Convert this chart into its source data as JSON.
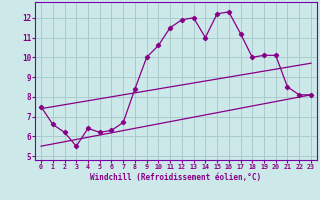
{
  "xlabel": "Windchill (Refroidissement éolien,°C)",
  "bg_color": "#cce8e8",
  "grid_color": "#aacccc",
  "line_color": "#880088",
  "spine_color": "#7700aa",
  "xlim": [
    -0.5,
    23.5
  ],
  "ylim": [
    4.8,
    12.8
  ],
  "yticks": [
    5,
    6,
    7,
    8,
    9,
    10,
    11,
    12
  ],
  "xticks": [
    0,
    1,
    2,
    3,
    4,
    5,
    6,
    7,
    8,
    9,
    10,
    11,
    12,
    13,
    14,
    15,
    16,
    17,
    18,
    19,
    20,
    21,
    22,
    23
  ],
  "series1_x": [
    0,
    1,
    2,
    3,
    4,
    5,
    6,
    7,
    8,
    9,
    10,
    11,
    12,
    13,
    14,
    15,
    16,
    17,
    18,
    19,
    20,
    21,
    22,
    23
  ],
  "series1_y": [
    7.5,
    6.6,
    6.2,
    5.5,
    6.4,
    6.2,
    6.3,
    6.7,
    8.4,
    10.0,
    10.6,
    11.5,
    11.9,
    12.0,
    11.0,
    12.2,
    12.3,
    11.2,
    10.0,
    10.1,
    10.1,
    8.5,
    8.1,
    8.1
  ],
  "line2_x": [
    0,
    23
  ],
  "line2_y": [
    7.4,
    9.7
  ],
  "line3_x": [
    0,
    23
  ],
  "line3_y": [
    5.5,
    8.1
  ]
}
